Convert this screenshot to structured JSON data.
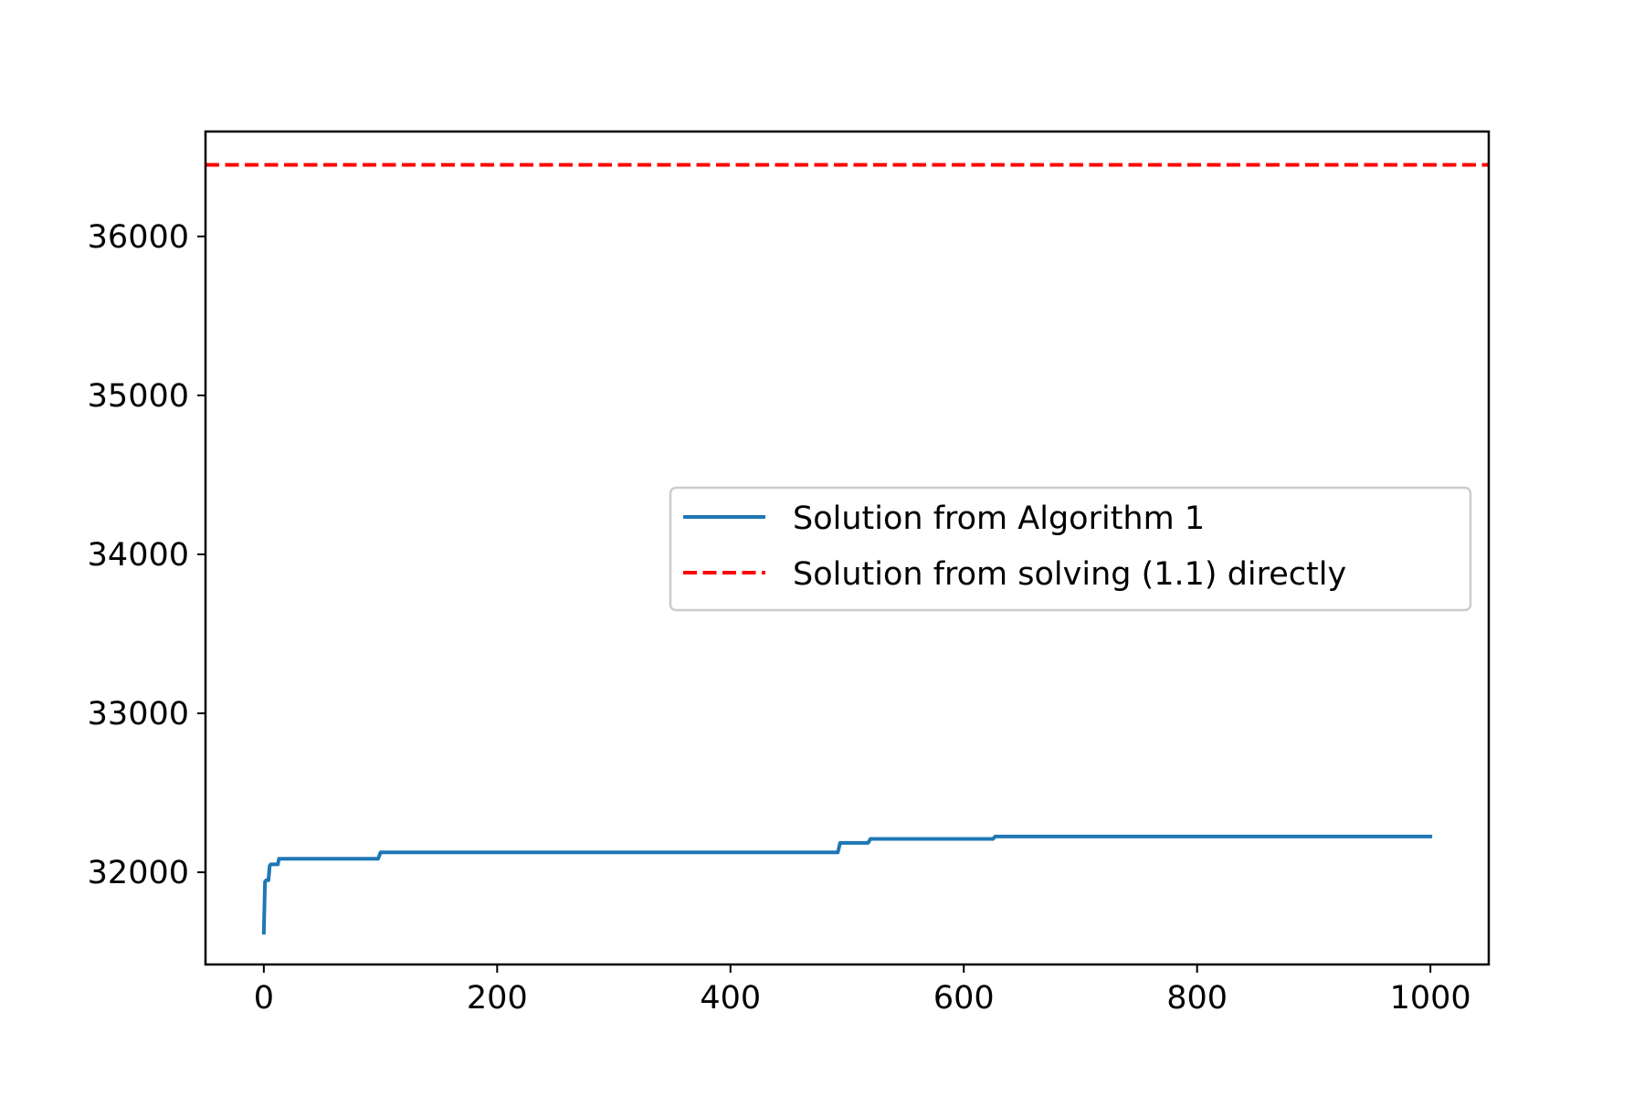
{
  "chart_data": {
    "type": "line",
    "title": "",
    "xlabel": "",
    "ylabel": "",
    "xlim": [
      -50,
      1050
    ],
    "ylim": [
      31420,
      36660
    ],
    "x_ticks": [
      0,
      200,
      400,
      600,
      800,
      1000
    ],
    "x_tick_labels": [
      "0",
      "200",
      "400",
      "600",
      "800",
      "1000"
    ],
    "y_ticks": [
      32000,
      33000,
      34000,
      35000,
      36000
    ],
    "y_tick_labels": [
      "32000",
      "33000",
      "34000",
      "35000",
      "36000"
    ],
    "grid": false,
    "legend_placement": "center-right",
    "series": [
      {
        "name": "Solution from Algorithm 1",
        "color": "#1f77b4",
        "style": "solid",
        "x": [
          0,
          1,
          2,
          4,
          5,
          6,
          12,
          13,
          48,
          98,
          100,
          492,
          494,
          518,
          520,
          625,
          627,
          1000
        ],
        "y": [
          31620,
          31940,
          31950,
          31950,
          32040,
          32050,
          32050,
          32085,
          32085,
          32085,
          32125,
          32125,
          32185,
          32185,
          32210,
          32210,
          32225,
          32225
        ]
      },
      {
        "name": "Solution from solving (1.1) directly",
        "color": "#ff0000",
        "style": "dashed",
        "y": 36450
      }
    ]
  }
}
